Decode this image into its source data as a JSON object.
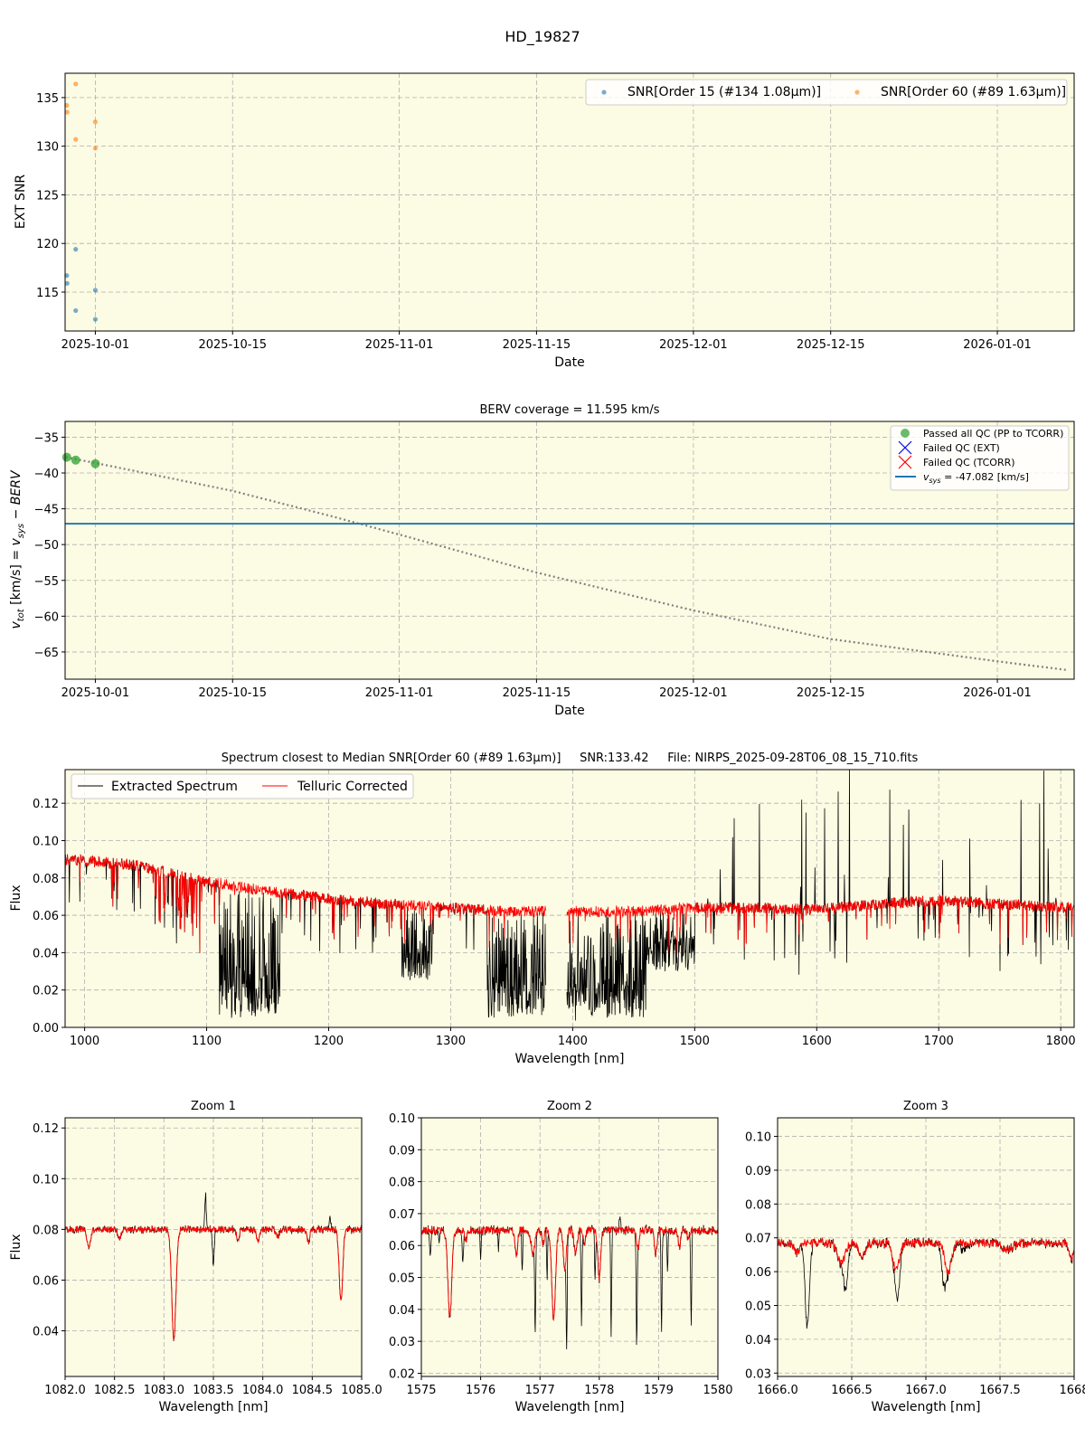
{
  "figure_title": "HD_19827",
  "colors": {
    "plot_bg": "#fcfbe3",
    "snr15": "#1f77b4",
    "snr60": "#ff7f0e",
    "passed": "#2ca02c",
    "failed": "#0000ff",
    "failed_tcorr": "#ff0000",
    "vsys": "#1f77b4",
    "extracted": "#000000",
    "telluric": "#ff0000",
    "model": "#808080"
  },
  "chart_data": [
    {
      "id": "snr",
      "type": "scatter",
      "title": "",
      "xlabel": "Date",
      "ylabel": "EXT SNR",
      "xlim": [
        "2025-09-27T22:00",
        "2026-01-08T20:00"
      ],
      "ylim": [
        111,
        137.5
      ],
      "xticks": [
        "2025-10-01",
        "2025-10-15",
        "2025-11-01",
        "2025-11-15",
        "2025-12-01",
        "2025-12-15",
        "2026-01-01"
      ],
      "yticks": [
        115,
        120,
        125,
        130,
        135
      ],
      "grid": true,
      "legend": "top-right",
      "series": [
        {
          "name": "SNR[Order 15 (#134 1.08μm)]",
          "color": "#1f77b4",
          "points": [
            [
              "2025-09-28T02:00",
              116.7
            ],
            [
              "2025-09-28T03:00",
              115.9
            ],
            [
              "2025-09-29T00:00",
              119.4
            ],
            [
              "2025-09-29T00:00",
              113.1
            ],
            [
              "2025-10-01T00:00",
              115.2
            ],
            [
              "2025-10-01T00:00",
              112.2
            ]
          ]
        },
        {
          "name": "SNR[Order 60 (#89 1.63μm)]",
          "color": "#ff7f0e",
          "points": [
            [
              "2025-09-28T02:00",
              134.2
            ],
            [
              "2025-09-28T03:00",
              133.5
            ],
            [
              "2025-09-29T00:00",
              136.4
            ],
            [
              "2025-09-29T00:00",
              130.7
            ],
            [
              "2025-10-01T00:00",
              132.5
            ],
            [
              "2025-10-01T00:00",
              129.8
            ]
          ]
        }
      ]
    },
    {
      "id": "berv",
      "type": "scatter",
      "title": "BERV coverage = 11.595 km/s",
      "xlabel": "Date",
      "ylabel": "v_tot [km/s] = v_sys − BERV",
      "xlim": [
        "2025-09-27T22:00",
        "2026-01-08T20:00"
      ],
      "ylim": [
        -68.8,
        -32.8
      ],
      "xticks": [
        "2025-10-01",
        "2025-10-15",
        "2025-11-01",
        "2025-11-15",
        "2025-12-01",
        "2025-12-15",
        "2026-01-01"
      ],
      "yticks": [
        -35,
        -40,
        -45,
        -50,
        -55,
        -60,
        -65
      ],
      "grid": true,
      "legend": "top-right",
      "legend_entries": [
        "Passed all QC (PP to TCORR)",
        "Failed QC (EXT)",
        "Failed QC (TCORR)",
        "v_sys = -47.082 [km/s]"
      ],
      "vsys": -47.082,
      "passed_points": [
        [
          "2025-09-28T02:00",
          -37.8
        ],
        [
          "2025-09-29T00:00",
          -38.2
        ],
        [
          "2025-10-01T00:00",
          -38.7
        ]
      ],
      "berv_curve": [
        [
          "2025-09-28",
          -37.8
        ],
        [
          "2025-10-01",
          -38.6
        ],
        [
          "2025-10-15",
          -42.5
        ],
        [
          "2025-10-25",
          -46.0
        ],
        [
          "2025-11-01",
          -48.6
        ],
        [
          "2025-11-15",
          -53.9
        ],
        [
          "2025-12-01",
          -59.2
        ],
        [
          "2025-12-15",
          -63.2
        ],
        [
          "2026-01-01",
          -66.3
        ],
        [
          "2026-01-08",
          -67.5
        ]
      ]
    },
    {
      "id": "spectrum",
      "type": "line",
      "title": "Spectrum closest to Median SNR[Order 60 (#89 1.63μm)]     SNR:133.42     File: NIRPS_2025-09-28T06_08_15_710.fits",
      "xlabel": "Wavelength [nm]",
      "ylabel": "Flux",
      "xlim": [
        984,
        1811
      ],
      "ylim": [
        0,
        0.138
      ],
      "xticks": [
        1000,
        1100,
        1200,
        1300,
        1400,
        1500,
        1600,
        1700,
        1800
      ],
      "yticks": [
        0.0,
        0.02,
        0.04,
        0.06,
        0.08,
        0.1,
        0.12
      ],
      "grid": true,
      "legend": "top-left",
      "series": [
        {
          "name": "Extracted Spectrum",
          "color": "#000000"
        },
        {
          "name": "Telluric Corrected",
          "color": "#ff0000"
        }
      ],
      "continuum": [
        [
          984,
          0.09
        ],
        [
          1040,
          0.087
        ],
        [
          1075,
          0.082
        ],
        [
          1100,
          0.078
        ],
        [
          1150,
          0.073
        ],
        [
          1200,
          0.069
        ],
        [
          1250,
          0.066
        ],
        [
          1300,
          0.064
        ],
        [
          1350,
          0.062
        ],
        [
          1380,
          0.062
        ],
        [
          1395,
          0.062
        ],
        [
          1450,
          0.062
        ],
        [
          1500,
          0.064
        ],
        [
          1550,
          0.064
        ],
        [
          1600,
          0.063
        ],
        [
          1650,
          0.066
        ],
        [
          1700,
          0.068
        ],
        [
          1750,
          0.066
        ],
        [
          1811,
          0.064
        ]
      ],
      "telluric_bands": [
        [
          1110,
          1160,
          0.005
        ],
        [
          1260,
          1285,
          0.025
        ],
        [
          1330,
          1378,
          0.005
        ],
        [
          1395,
          1460,
          0.005
        ],
        [
          1460,
          1500,
          0.03
        ]
      ],
      "gaps": [
        [
          1378,
          1395
        ]
      ]
    },
    {
      "id": "zoom1",
      "type": "line",
      "title": "Zoom 1",
      "xlabel": "Wavelength [nm]",
      "ylabel": "Flux",
      "xlim": [
        1082.0,
        1085.0
      ],
      "ylim": [
        0.022,
        0.124
      ],
      "xticks": [
        "1082.0",
        "1082.5",
        "1083.0",
        "1083.5",
        "1084.0",
        "1084.5",
        "1085.0"
      ],
      "yticks": [
        "0.04",
        "0.06",
        "0.08",
        "0.10",
        "0.12"
      ],
      "grid": true,
      "continuum": 0.08,
      "lines_both": [
        [
          1082.24,
          0.007,
          0.025
        ],
        [
          1082.55,
          0.004,
          0.02
        ],
        [
          1083.1,
          0.043,
          0.03
        ],
        [
          1083.75,
          0.004,
          0.02
        ],
        [
          1083.95,
          0.005,
          0.02
        ],
        [
          1084.15,
          0.003,
          0.02
        ],
        [
          1084.46,
          0.005,
          0.02
        ],
        [
          1084.79,
          0.028,
          0.025
        ]
      ],
      "lines_black_only": [
        [
          1083.5,
          0.015,
          0.012
        ],
        [
          1083.42,
          -0.014,
          0.01
        ],
        [
          1084.68,
          -0.005,
          0.01
        ]
      ]
    },
    {
      "id": "zoom2",
      "type": "line",
      "title": "Zoom 2",
      "xlabel": "Wavelength [nm]",
      "ylabel": "",
      "xlim": [
        1575,
        1580
      ],
      "ylim": [
        0.019,
        0.1
      ],
      "xticks": [
        1575,
        1576,
        1577,
        1578,
        1579,
        1580
      ],
      "yticks": [
        "0.02",
        "0.03",
        "0.04",
        "0.05",
        "0.06",
        "0.07",
        "0.08",
        "0.09",
        "0.10"
      ],
      "grid": true,
      "continuum": 0.0648,
      "lines_both": [
        [
          1575.48,
          0.027,
          0.045
        ],
        [
          1575.75,
          0.003,
          0.03
        ],
        [
          1576.6,
          0.008,
          0.03
        ],
        [
          1576.88,
          0.008,
          0.04
        ],
        [
          1577.05,
          0.004,
          0.03
        ],
        [
          1577.23,
          0.028,
          0.045
        ],
        [
          1577.42,
          0.012,
          0.035
        ],
        [
          1577.6,
          0.008,
          0.035
        ],
        [
          1577.75,
          0.004,
          0.03
        ],
        [
          1578.0,
          0.015,
          0.035
        ],
        [
          1578.65,
          0.006,
          0.03
        ],
        [
          1578.95,
          0.008,
          0.03
        ],
        [
          1579.35,
          0.005,
          0.03
        ],
        [
          1579.5,
          0.003,
          0.03
        ]
      ],
      "lines_black_only": [
        [
          1575.15,
          0.008,
          0.015
        ],
        [
          1575.3,
          0.005,
          0.012
        ],
        [
          1575.7,
          0.01,
          0.015
        ],
        [
          1576.0,
          0.008,
          0.012
        ],
        [
          1576.3,
          0.006,
          0.012
        ],
        [
          1576.7,
          0.013,
          0.012
        ],
        [
          1576.92,
          0.03,
          0.012
        ],
        [
          1577.12,
          0.015,
          0.012
        ],
        [
          1577.45,
          0.033,
          0.012
        ],
        [
          1577.7,
          0.03,
          0.012
        ],
        [
          1577.93,
          0.015,
          0.012
        ],
        [
          1578.2,
          0.033,
          0.012
        ],
        [
          1578.63,
          0.033,
          0.012
        ],
        [
          1579.05,
          0.033,
          0.012
        ],
        [
          1579.15,
          0.013,
          0.012
        ],
        [
          1579.55,
          0.03,
          0.012
        ],
        [
          1578.35,
          -0.004,
          0.015
        ]
      ]
    },
    {
      "id": "zoom3",
      "type": "line",
      "title": "Zoom 3",
      "xlabel": "Wavelength [nm]",
      "ylabel": "",
      "xlim": [
        1666.0,
        1668.0
      ],
      "ylim": [
        0.029,
        0.1055
      ],
      "xticks": [
        "1666.0",
        "1666.5",
        "1667.0",
        "1667.5",
        "1668"
      ],
      "yticks": [
        "0.03",
        "0.04",
        "0.05",
        "0.06",
        "0.07",
        "0.08",
        "0.09",
        "0.10"
      ],
      "grid": true,
      "continuum": 0.0685,
      "lines_both": [
        [
          1666.13,
          0.003,
          0.025
        ],
        [
          1666.43,
          0.006,
          0.035
        ],
        [
          1666.57,
          0.004,
          0.03
        ],
        [
          1666.8,
          0.008,
          0.03
        ],
        [
          1667.15,
          0.009,
          0.03
        ],
        [
          1667.55,
          0.002,
          0.05
        ],
        [
          1667.98,
          0.005,
          0.02
        ]
      ],
      "lines_black_only": [
        [
          1666.2,
          0.025,
          0.02
        ],
        [
          1666.46,
          0.011,
          0.02
        ],
        [
          1666.81,
          0.01,
          0.02
        ],
        [
          1667.12,
          0.009,
          0.02
        ],
        [
          1667.25,
          0.002,
          0.03
        ]
      ]
    }
  ]
}
